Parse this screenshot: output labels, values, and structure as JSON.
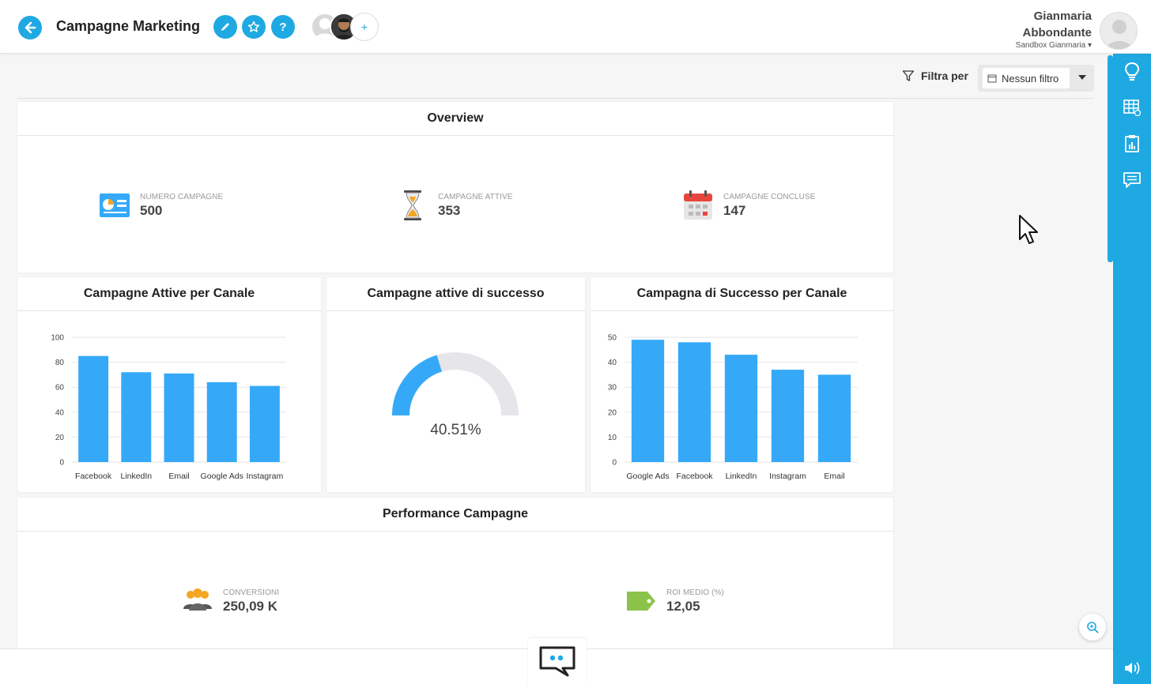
{
  "header": {
    "title": "Campagne Marketing",
    "add_member": "+",
    "help": "?",
    "user_name_line1": "Gianmaria",
    "user_name_line2": "Abbondante",
    "workspace": "Sandbox Gianmaria"
  },
  "filter": {
    "label": "Filtra per",
    "value": "Nessun filtro"
  },
  "overview": {
    "title": "Overview",
    "kpis": [
      {
        "label": "NUMERO CAMPAGNE",
        "value": "500",
        "icon": "chart-card-icon"
      },
      {
        "label": "CAMPAGNE ATTIVE",
        "value": "353",
        "icon": "hourglass-icon"
      },
      {
        "label": "CAMPAGNE CONCLUSE",
        "value": "147",
        "icon": "calendar-icon"
      }
    ]
  },
  "panels": {
    "active_by_channel": "Campagne Attive per Canale",
    "active_success": "Campagne attive di successo",
    "success_by_channel": "Campagna di Successo per Canale"
  },
  "performance": {
    "title": "Performance Campagne",
    "kpis": [
      {
        "label": "CONVERSIONI",
        "value": "250,09 K",
        "icon": "people-icon"
      },
      {
        "label": "ROI MEDIO (%)",
        "value": "12,05",
        "icon": "tag-icon"
      }
    ]
  },
  "colors": {
    "accent": "#1fa9e2",
    "bar": "#35a9f8",
    "gauge_track": "#e6e6ea"
  },
  "chart_data": [
    {
      "type": "bar",
      "title": "Campagne Attive per Canale",
      "categories": [
        "Facebook",
        "LinkedIn",
        "Email",
        "Google Ads",
        "Instagram"
      ],
      "values": [
        85,
        72,
        71,
        64,
        61
      ],
      "ylim": [
        0,
        100
      ],
      "yticks": [
        0,
        20,
        40,
        60,
        80,
        100
      ],
      "grid": true
    },
    {
      "type": "gauge",
      "title": "Campagne attive di successo",
      "value": 40.51,
      "display": "40.51%",
      "max": 100
    },
    {
      "type": "bar",
      "title": "Campagna di Successo per Canale",
      "categories": [
        "Google Ads",
        "Facebook",
        "LinkedIn",
        "Instagram",
        "Email"
      ],
      "values": [
        49,
        48,
        43,
        37,
        35
      ],
      "ylim": [
        0,
        50
      ],
      "yticks": [
        0,
        10,
        20,
        30,
        40,
        50
      ],
      "grid": true
    }
  ]
}
